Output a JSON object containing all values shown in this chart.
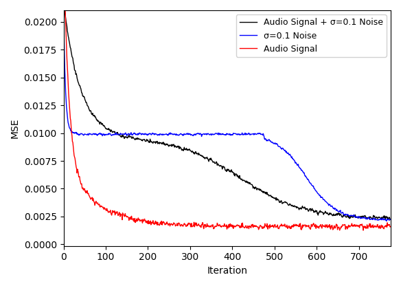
{
  "title": "",
  "xlabel": "Iteration",
  "ylabel": "MSE",
  "xlim": [
    0,
    775
  ],
  "ylim": [
    -0.00015,
    0.02105
  ],
  "legend": [
    {
      "label": "Audio Signal + σ=0.1 Noise",
      "color": "black"
    },
    {
      "label": "σ=0.1 Noise",
      "color": "blue"
    },
    {
      "label": "Audio Signal",
      "color": "red"
    }
  ],
  "xticks": [
    0,
    100,
    200,
    300,
    400,
    500,
    600,
    700
  ],
  "yticks": [
    0.0,
    0.0025,
    0.005,
    0.0075,
    0.01,
    0.0125,
    0.015,
    0.0175,
    0.02
  ],
  "figsize": [
    5.84,
    4.16
  ],
  "dpi": 100,
  "line_width": 1.0,
  "noise_black": 0.00012,
  "noise_blue": 6e-05,
  "noise_red": 0.00012
}
